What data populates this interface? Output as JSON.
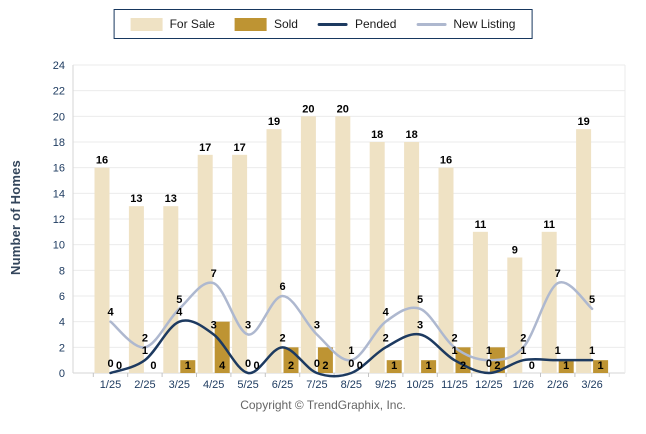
{
  "legend": {
    "items": [
      {
        "label": "For Sale",
        "swatch": "bar",
        "color": "#EFE2C4"
      },
      {
        "label": "Sold",
        "swatch": "bar",
        "color": "#BE9433"
      },
      {
        "label": "Pended",
        "swatch": "line",
        "color": "#1D3A60"
      },
      {
        "label": "New Listing",
        "swatch": "line",
        "color": "#AEB8CF"
      }
    ]
  },
  "axes": {
    "y_title": "Number of Homes"
  },
  "footer": {
    "copyright": "Copyright © TrendGraphix, Inc."
  },
  "colors": {
    "grid": "#EBEBEB",
    "axis_line": "#D6D6D6",
    "tick_mark": "#C4C4C4",
    "tick_text": "#1F3C61",
    "value_label": "#000000",
    "legend_border": "#17375E",
    "y_title_text": "#33455B",
    "copyright_text": "#666666",
    "background": "#FFFFFF"
  },
  "chart_data": {
    "type": "combo-bar-line",
    "title": "",
    "xlabel": "",
    "ylabel": "Number of Homes",
    "ylim": [
      0,
      24
    ],
    "ytick_step": 2,
    "grid": true,
    "legend_position": "top",
    "categories": [
      "1/25",
      "2/25",
      "3/25",
      "4/25",
      "5/25",
      "6/25",
      "7/25",
      "8/25",
      "9/25",
      "10/25",
      "11/25",
      "12/25",
      "1/26",
      "2/26",
      "3/26"
    ],
    "series": [
      {
        "name": "For Sale",
        "type": "bar",
        "color": "#EFE2C4",
        "values": [
          16,
          13,
          13,
          17,
          17,
          19,
          20,
          20,
          18,
          18,
          16,
          11,
          9,
          11,
          19
        ]
      },
      {
        "name": "Sold",
        "type": "bar",
        "color": "#BE9433",
        "values": [
          0,
          0,
          1,
          4,
          0,
          2,
          2,
          0,
          1,
          1,
          2,
          2,
          0,
          1,
          1
        ]
      },
      {
        "name": "Pended",
        "type": "line",
        "color": "#1D3A60",
        "values": [
          0,
          1,
          4,
          3,
          0,
          2,
          0,
          0,
          2,
          3,
          1,
          0,
          1,
          1,
          1
        ]
      },
      {
        "name": "New Listing",
        "type": "line",
        "color": "#AEB8CF",
        "values": [
          4,
          2,
          5,
          7,
          3,
          6,
          3,
          1,
          4,
          5,
          2,
          1,
          2,
          7,
          5
        ]
      }
    ]
  }
}
